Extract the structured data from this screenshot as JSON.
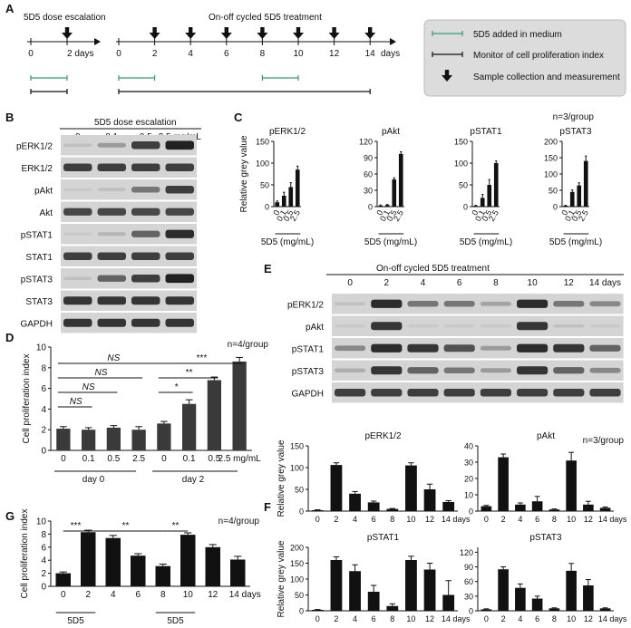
{
  "panel_labels": [
    "A",
    "B",
    "C",
    "D",
    "E",
    "F",
    "G"
  ],
  "panelA": {
    "dose_title": "5D5 dose escalation",
    "dose_ticks": [
      "0",
      "2 days"
    ],
    "cycle_title": "On-off cycled 5D5 treatment",
    "cycle_ticks": [
      "0",
      "2",
      "4",
      "6",
      "8",
      "10",
      "12",
      "14"
    ],
    "cycle_unit": "days",
    "legend": [
      "5D5 added in medium",
      "Monitor of cell proliferation index",
      "Sample collection and measurement"
    ]
  },
  "panelB": {
    "header": "5D5 dose escalation",
    "lanes": [
      "0",
      "0.1",
      "0.5",
      "2.5 mg/mL"
    ],
    "rows": [
      "pERK1/2",
      "ERK1/2",
      "pAkt",
      "Akt",
      "pSTAT1",
      "STAT1",
      "pSTAT3",
      "STAT3",
      "GAPDH"
    ],
    "intensity": [
      [
        0.1,
        0.3,
        0.8,
        0.95
      ],
      [
        0.8,
        0.8,
        0.8,
        0.8
      ],
      [
        0.05,
        0.1,
        0.5,
        0.8
      ],
      [
        0.75,
        0.75,
        0.75,
        0.75
      ],
      [
        0.05,
        0.15,
        0.6,
        0.9
      ],
      [
        0.8,
        0.8,
        0.8,
        0.8
      ],
      [
        0.1,
        0.6,
        0.8,
        0.95
      ],
      [
        0.85,
        0.85,
        0.85,
        0.85
      ],
      [
        0.85,
        0.85,
        0.85,
        0.85
      ]
    ]
  },
  "panelE": {
    "header": "On-off cycled 5D5 treatment",
    "lanes": [
      "0",
      "2",
      "4",
      "6",
      "8",
      "10",
      "12",
      "14 days"
    ],
    "rows": [
      "pERK1/2",
      "pAkt",
      "pSTAT1",
      "pSTAT3",
      "GAPDH"
    ],
    "intensity": [
      [
        0.1,
        0.9,
        0.5,
        0.5,
        0.25,
        0.9,
        0.5,
        0.4
      ],
      [
        0.05,
        0.85,
        0.05,
        0.05,
        0.05,
        0.85,
        0.1,
        0.05
      ],
      [
        0.4,
        0.9,
        0.85,
        0.7,
        0.3,
        0.9,
        0.85,
        0.6
      ],
      [
        0.2,
        0.85,
        0.6,
        0.5,
        0.3,
        0.85,
        0.6,
        0.4
      ],
      [
        0.8,
        0.8,
        0.8,
        0.8,
        0.8,
        0.8,
        0.8,
        0.8
      ]
    ]
  },
  "chart_data": [
    {
      "id": "C1",
      "type": "bar",
      "title": "pERK1/2",
      "ylabel": "Relative grey value",
      "categories": [
        "0",
        "0.1",
        "0.5",
        "2.5"
      ],
      "values": [
        10,
        25,
        45,
        85
      ],
      "errors": [
        3,
        8,
        10,
        8
      ],
      "ylim": [
        0,
        150
      ],
      "yticks": [
        "0",
        "50",
        "100",
        "150"
      ],
      "xlabel": "5D5 (mg/mL)"
    },
    {
      "id": "C2",
      "type": "bar",
      "title": "pAkt",
      "categories": [
        "0",
        "0.1",
        "0.5",
        "2.5"
      ],
      "values": [
        2,
        3,
        50,
        97
      ],
      "errors": [
        1,
        1,
        3,
        4
      ],
      "ylim": [
        0,
        120
      ],
      "yticks": [
        "0",
        "30",
        "60",
        "90",
        "120"
      ],
      "xlabel": "5D5 (mg/mL)"
    },
    {
      "id": "C3",
      "type": "bar",
      "title": "pSTAT1",
      "categories": [
        "0",
        "0.1",
        "0.5",
        "2.5"
      ],
      "values": [
        2,
        20,
        50,
        100
      ],
      "errors": [
        1,
        8,
        12,
        5
      ],
      "ylim": [
        0,
        150
      ],
      "yticks": [
        "0",
        "50",
        "100",
        "150"
      ],
      "xlabel": "5D5 (mg/mL)"
    },
    {
      "id": "C4",
      "type": "bar",
      "title": "pSTAT3",
      "categories": [
        "0",
        "0.1",
        "0.5",
        "2.5"
      ],
      "values": [
        3,
        45,
        65,
        140
      ],
      "errors": [
        1,
        6,
        8,
        15
      ],
      "ylim": [
        0,
        200
      ],
      "yticks": [
        "0",
        "50",
        "100",
        "150",
        "200"
      ],
      "xlabel": "5D5 (mg/mL)",
      "note": "n=3/group"
    },
    {
      "id": "D",
      "type": "bar",
      "ylabel": "Cell proliferation index",
      "categories": [
        "0",
        "0.1",
        "0.5",
        "2.5",
        "0",
        "0.1",
        "0.5",
        "2.5 mg/mL"
      ],
      "values": [
        2.1,
        2.0,
        2.2,
        2.0,
        2.6,
        4.5,
        6.8,
        8.6
      ],
      "errors": [
        0.2,
        0.2,
        0.2,
        0.3,
        0.2,
        0.4,
        0.3,
        0.4
      ],
      "ylim": [
        0,
        10
      ],
      "yticks": [
        "0",
        "2",
        "4",
        "6",
        "8",
        "10"
      ],
      "groups": [
        "day 0",
        "day 2"
      ],
      "note": "n=4/group",
      "annotations": [
        "NS",
        "NS",
        "NS",
        "NS",
        "***",
        "**",
        "*"
      ]
    },
    {
      "id": "F1",
      "type": "bar",
      "title": "pERK1/2",
      "ylabel": "Relative grey value",
      "categories": [
        "0",
        "2",
        "4",
        "6",
        "8",
        "10",
        "12",
        "14 days"
      ],
      "values": [
        2,
        106,
        40,
        20,
        5,
        105,
        50,
        21
      ],
      "errors": [
        1,
        5,
        5,
        3,
        1,
        6,
        12,
        3
      ],
      "ylim": [
        0,
        150
      ],
      "yticks": [
        "0",
        "50",
        "100",
        "150"
      ],
      "note": "n=3/group"
    },
    {
      "id": "F2",
      "type": "bar",
      "title": "pAkt",
      "categories": [
        "0",
        "2",
        "4",
        "6",
        "8",
        "10",
        "12",
        "14 days"
      ],
      "values": [
        3,
        33,
        4,
        6,
        1,
        31,
        4,
        2
      ],
      "errors": [
        0.5,
        2,
        1,
        3,
        0.3,
        5,
        2,
        0.5
      ],
      "ylim": [
        0,
        40
      ],
      "yticks": [
        "0",
        "10",
        "20",
        "30",
        "40"
      ]
    },
    {
      "id": "F3",
      "type": "bar",
      "title": "pSTAT1",
      "ylabel": "Relative grey value",
      "categories": [
        "0",
        "2",
        "4",
        "6",
        "8",
        "10",
        "12",
        "14 days"
      ],
      "values": [
        3,
        160,
        125,
        60,
        15,
        160,
        130,
        50
      ],
      "errors": [
        1,
        10,
        20,
        20,
        7,
        12,
        20,
        45
      ],
      "ylim": [
        0,
        200
      ],
      "yticks": [
        "0",
        "50",
        "100",
        "150",
        "200"
      ]
    },
    {
      "id": "F4",
      "type": "bar",
      "title": "pSTAT3",
      "categories": [
        "0",
        "2",
        "4",
        "6",
        "8",
        "10",
        "12",
        "14 days"
      ],
      "values": [
        3,
        85,
        47,
        25,
        5,
        82,
        52,
        5
      ],
      "errors": [
        1,
        5,
        8,
        5,
        1,
        15,
        12,
        1
      ],
      "ylim": [
        0,
        130
      ],
      "yticks": [
        "0",
        "30",
        "60",
        "90",
        "120"
      ]
    },
    {
      "id": "G",
      "type": "bar",
      "ylabel": "Cell proliferation index",
      "categories": [
        "0",
        "2",
        "4",
        "6",
        "8",
        "10",
        "12",
        "14 days"
      ],
      "values": [
        2.0,
        8.3,
        7.4,
        4.7,
        3.1,
        7.9,
        6.0,
        4.1
      ],
      "errors": [
        0.2,
        0.3,
        0.4,
        0.3,
        0.3,
        0.3,
        0.4,
        0.5
      ],
      "ylim": [
        0,
        10
      ],
      "yticks": [
        "0",
        "2",
        "4",
        "6",
        "8",
        "10"
      ],
      "groups": [
        "5D5",
        "5D5"
      ],
      "note": "n=4/group",
      "annotations": [
        "***",
        "**",
        "**"
      ]
    }
  ]
}
